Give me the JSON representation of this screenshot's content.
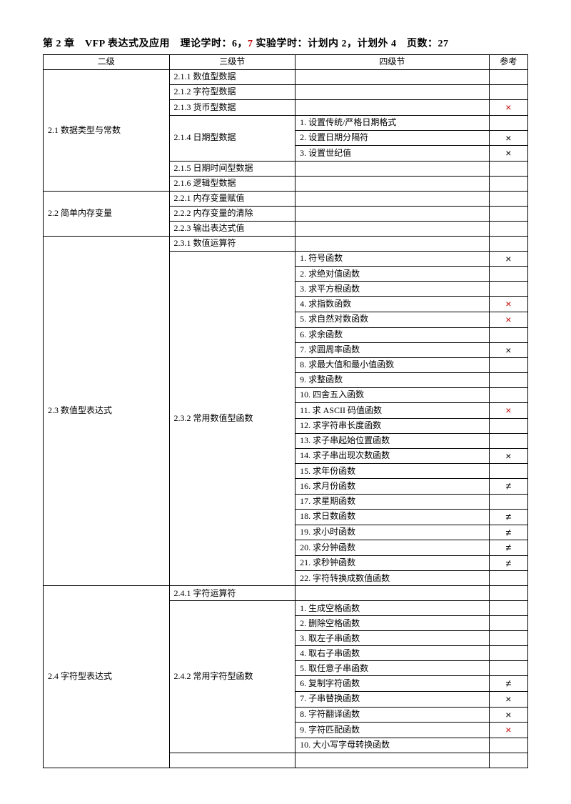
{
  "title_parts": {
    "p1": "第 2 章　VFP 表达式及应用　理论学时：6，",
    "p2": "7",
    "p3": " 实验学时：计划内 2，计划外 4　页数：27"
  },
  "headers": {
    "c1": "二级",
    "c2": "三级节",
    "c3": "四级节",
    "c4": "参考"
  },
  "symbols": {
    "x_red": "×",
    "x_black": "×",
    "ne": "≠"
  },
  "sections": [
    {
      "l2": "2.1 数据类型与常数",
      "l3rows": [
        {
          "l3": "2.1.1 数值型数据",
          "l4": [
            {
              "t": "",
              "ref": ""
            }
          ]
        },
        {
          "l3": "2.1.2 字符型数据",
          "l4": [
            {
              "t": "",
              "ref": ""
            }
          ]
        },
        {
          "l3": "2.1.3 货币型数据",
          "l4": [
            {
              "t": "",
              "ref": "x_red"
            }
          ]
        },
        {
          "l3": "2.1.4 日期型数据",
          "l4": [
            {
              "t": "1. 设置传统/严格日期格式",
              "ref": ""
            },
            {
              "t": "2. 设置日期分隔符",
              "ref": "x_black"
            },
            {
              "t": "3. 设置世纪值",
              "ref": "x_black"
            }
          ]
        },
        {
          "l3": "2.1.5 日期时间型数据",
          "l4": [
            {
              "t": "",
              "ref": ""
            }
          ]
        },
        {
          "l3": "2.1.6 逻辑型数据",
          "l4": [
            {
              "t": "",
              "ref": ""
            }
          ]
        }
      ]
    },
    {
      "l2": "2.2 简单内存变量",
      "l3rows": [
        {
          "l3": "2.2.1 内存变量赋值",
          "l4": [
            {
              "t": "",
              "ref": ""
            }
          ]
        },
        {
          "l3": "2.2.2 内存变量的清除",
          "l4": [
            {
              "t": "",
              "ref": ""
            }
          ]
        },
        {
          "l3": "2.2.3 输出表达式值",
          "l4": [
            {
              "t": "",
              "ref": ""
            }
          ]
        }
      ]
    },
    {
      "l2": "2.3 数值型表达式",
      "l3rows": [
        {
          "l3": "2.3.1 数值运算符",
          "l4": [
            {
              "t": "",
              "ref": ""
            }
          ]
        },
        {
          "l3": "2.3.2 常用数值型函数",
          "l4": [
            {
              "t": "1. 符号函数",
              "ref": "x_black"
            },
            {
              "t": "2. 求绝对值函数",
              "ref": ""
            },
            {
              "t": "3. 求平方根函数",
              "ref": ""
            },
            {
              "t": "4. 求指数函数",
              "ref": "x_red"
            },
            {
              "t": "5. 求自然对数函数",
              "ref": "x_red"
            },
            {
              "t": "6. 求余函数",
              "ref": ""
            },
            {
              "t": "7. 求圆周率函数",
              "ref": "x_black"
            },
            {
              "t": "8. 求最大值和最小值函数",
              "ref": ""
            },
            {
              "t": "9. 求整函数",
              "ref": ""
            },
            {
              "t": "10. 四舍五入函数",
              "ref": ""
            },
            {
              "t": "11. 求 ASCII 码值函数",
              "ref": "x_red"
            },
            {
              "t": "12. 求字符串长度函数",
              "ref": ""
            },
            {
              "t": "13. 求子串起始位置函数",
              "ref": ""
            },
            {
              "t": "14. 求子串出现次数函数",
              "ref": "x_black"
            },
            {
              "t": "15. 求年份函数",
              "ref": ""
            },
            {
              "t": "16. 求月份函数",
              "ref": "ne"
            },
            {
              "t": "17. 求星期函数",
              "ref": ""
            },
            {
              "t": "18. 求日数函数",
              "ref": "ne"
            },
            {
              "t": "19. 求小时函数",
              "ref": "ne"
            },
            {
              "t": "20. 求分钟函数",
              "ref": "ne"
            },
            {
              "t": "21. 求秒钟函数",
              "ref": "ne"
            },
            {
              "t": "22. 字符转换成数值函数",
              "ref": ""
            }
          ]
        }
      ]
    },
    {
      "l2": "2.4 字符型表达式",
      "l3rows": [
        {
          "l3": "2.4.1 字符运算符",
          "l4": [
            {
              "t": "",
              "ref": ""
            }
          ]
        },
        {
          "l3": "2.4.2 常用字符型函数",
          "l4": [
            {
              "t": "1. 生成空格函数",
              "ref": ""
            },
            {
              "t": "2. 删除空格函数",
              "ref": ""
            },
            {
              "t": "3. 取左子串函数",
              "ref": ""
            },
            {
              "t": "4. 取右子串函数",
              "ref": ""
            },
            {
              "t": "5. 取任意子串函数",
              "ref": ""
            },
            {
              "t": "6. 复制字符函数",
              "ref": "ne"
            },
            {
              "t": "7. 子串替换函数",
              "ref": "x_black"
            },
            {
              "t": "8. 字符翻译函数",
              "ref": "x_black"
            },
            {
              "t": "9. 字符匹配函数",
              "ref": "x_red"
            },
            {
              "t": "10. 大小写字母转换函数",
              "ref": ""
            }
          ]
        },
        {
          "l3": "",
          "l4": [
            {
              "t": "",
              "ref": ""
            }
          ]
        }
      ]
    }
  ]
}
